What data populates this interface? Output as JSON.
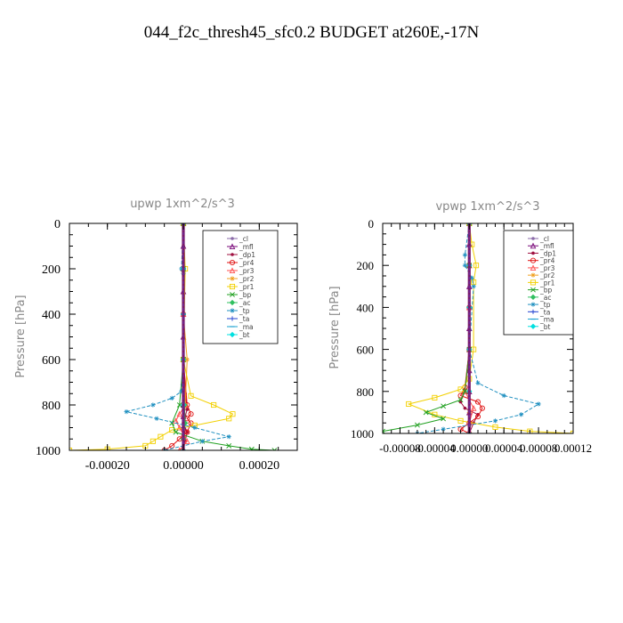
{
  "page_title": "044_f2c_thresh45_sfc0.2  BUDGET at260E,-17N",
  "chart_data": [
    {
      "type": "line",
      "title": "upwp   1xm^2/s^3",
      "ylabel": "Pressure [hPa]",
      "xlim": [
        -0.0003,
        0.0003
      ],
      "ylim": [
        1000,
        0
      ],
      "xticks": [
        -0.0002,
        0.0,
        0.0002
      ],
      "xtick_labels": [
        "-0.00020",
        "0.00000",
        "0.00020"
      ],
      "yticks": [
        0,
        200,
        400,
        600,
        800,
        1000
      ],
      "ytick_labels": [
        "0",
        "200",
        "400",
        "600",
        "800",
        "1000"
      ],
      "legend_location": "top-right",
      "series": [
        {
          "name": "_cl",
          "color": "#8a6aa8",
          "marker": "dot",
          "x": [
            0,
            0,
            0,
            0,
            0,
            0,
            0,
            0,
            0,
            0,
            0,
            0
          ],
          "y": [
            0,
            100,
            200,
            300,
            400,
            500,
            600,
            700,
            800,
            850,
            900,
            1000
          ]
        },
        {
          "name": "_mfl",
          "color": "#7a0a7a",
          "marker": "tri",
          "x": [
            0,
            0,
            0,
            0,
            0,
            0,
            0,
            0,
            0,
            0,
            0,
            0
          ],
          "y": [
            0,
            100,
            200,
            300,
            400,
            500,
            600,
            700,
            800,
            850,
            900,
            1000
          ]
        },
        {
          "name": "_dp1",
          "color": "#a01040",
          "marker": "dot",
          "x": [
            0,
            0,
            0,
            0,
            0,
            5e-06,
            1e-05,
            5e-06,
            0,
            1e-05,
            5e-06,
            0
          ],
          "y": [
            0,
            100,
            200,
            400,
            600,
            750,
            820,
            850,
            880,
            920,
            960,
            1000
          ]
        },
        {
          "name": "_pr4",
          "color": "#e01010",
          "marker": "circle",
          "x": [
            0,
            0,
            0,
            0,
            1e-05,
            2e-05,
            1e-05,
            2e-05,
            1e-05,
            -1e-05,
            -3e-05,
            -5e-05
          ],
          "y": [
            0,
            200,
            400,
            600,
            800,
            840,
            860,
            880,
            920,
            950,
            980,
            1000
          ]
        },
        {
          "name": "_pr3",
          "color": "#ff5050",
          "marker": "tri",
          "x": [
            0,
            0,
            0,
            0,
            5e-06,
            -1e-05,
            -2e-05,
            -1e-05,
            0,
            1e-05,
            -1e-05
          ],
          "y": [
            0,
            200,
            400,
            600,
            800,
            840,
            870,
            900,
            930,
            960,
            1000
          ]
        },
        {
          "name": "_pr2",
          "color": "#f0a020",
          "marker": "star",
          "x": [
            0,
            0,
            0,
            0,
            1e-05,
            5e-06,
            0,
            0,
            0
          ],
          "y": [
            0,
            200,
            220,
            400,
            600,
            800,
            900,
            950,
            1000
          ]
        },
        {
          "name": "_pr1",
          "color": "#f2d000",
          "marker": "square",
          "x": [
            0,
            5e-06,
            0,
            2e-05,
            8e-05,
            0.00013,
            0.00012,
            3e-05,
            -3e-05,
            -6e-05,
            -8e-05,
            -0.0001,
            -0.0002,
            -0.0003
          ],
          "y": [
            0,
            200,
            600,
            760,
            800,
            840,
            860,
            890,
            910,
            940,
            960,
            980,
            995,
            1000
          ]
        },
        {
          "name": "_bp",
          "color": "#20a020",
          "marker": "x",
          "x": [
            0,
            0,
            0,
            -1e-05,
            -3e-05,
            -2e-05,
            5e-05,
            0.00012,
            0.00018,
            0.00024
          ],
          "y": [
            0,
            200,
            600,
            800,
            880,
            920,
            960,
            980,
            995,
            1000
          ]
        },
        {
          "name": "_ac",
          "color": "#30c060",
          "marker": "diamond",
          "x": [
            0,
            0,
            0,
            3e-06,
            5e-06,
            0,
            0
          ],
          "y": [
            0,
            200,
            600,
            800,
            880,
            950,
            1000
          ]
        },
        {
          "name": "_tp",
          "color": "#2090c0",
          "marker": "star",
          "x": [
            0,
            -5e-06,
            0,
            0,
            -5e-06,
            -3e-05,
            -8e-05,
            -0.00015,
            -7e-05,
            3e-05,
            0.00012,
            5e-05,
            -5e-05
          ],
          "y": [
            0,
            200,
            220,
            600,
            740,
            770,
            800,
            830,
            860,
            900,
            940,
            960,
            1000
          ]
        },
        {
          "name": "_ta",
          "color": "#2040d0",
          "marker": "plus",
          "x": [
            0,
            0,
            0,
            0,
            0,
            0,
            0
          ],
          "y": [
            0,
            200,
            400,
            600,
            800,
            900,
            1000
          ]
        },
        {
          "name": "_ma",
          "color": "#1aa0d0",
          "marker": "dash",
          "x": [
            0,
            0,
            0,
            0,
            0,
            0
          ],
          "y": [
            0,
            200,
            400,
            600,
            800,
            1000
          ]
        },
        {
          "name": "_bt",
          "color": "#00e0e0",
          "marker": "diamond",
          "x": [
            0,
            0,
            0,
            0,
            0,
            0
          ],
          "y": [
            0,
            200,
            400,
            600,
            800,
            1000
          ]
        }
      ]
    },
    {
      "type": "line",
      "title": "vpwp   1xm^2/s^3",
      "ylabel": "Pressure [hPa]",
      "xlim": [
        -0.0001,
        0.00012
      ],
      "ylim": [
        1000,
        0
      ],
      "xticks": [
        -8e-05,
        -4e-05,
        0.0,
        4e-05,
        8e-05,
        0.00012
      ],
      "xtick_labels": [
        "-0.00008",
        "-0.00004",
        "0.00000",
        "0.00004",
        "0.00008",
        "0.00012"
      ],
      "yticks": [
        0,
        200,
        400,
        600,
        800,
        1000
      ],
      "ytick_labels": [
        "0",
        "200",
        "400",
        "600",
        "800",
        "1000"
      ],
      "legend_location": "top-right",
      "series": [
        {
          "name": "_cl",
          "color": "#8a6aa8",
          "marker": "dot",
          "x": [
            0,
            0,
            0,
            0,
            0,
            0,
            0,
            0,
            0,
            0,
            0
          ],
          "y": [
            0,
            100,
            200,
            300,
            400,
            500,
            600,
            700,
            800,
            900,
            1000
          ]
        },
        {
          "name": "_mfl",
          "color": "#7a0a7a",
          "marker": "tri",
          "x": [
            0,
            0,
            0,
            0,
            0,
            0,
            0,
            0,
            0,
            0,
            0
          ],
          "y": [
            0,
            100,
            200,
            300,
            400,
            500,
            600,
            700,
            800,
            900,
            1000
          ]
        },
        {
          "name": "_dp1",
          "color": "#a01040",
          "marker": "dot",
          "x": [
            0,
            0,
            0,
            0,
            -5e-06,
            -1e-05,
            -5e-06,
            1e-05,
            5e-06,
            0
          ],
          "y": [
            0,
            200,
            400,
            600,
            800,
            850,
            880,
            910,
            950,
            1000
          ]
        },
        {
          "name": "_pr4",
          "color": "#e01010",
          "marker": "circle",
          "x": [
            0,
            0,
            0,
            0,
            -5e-06,
            -1e-05,
            1e-05,
            1.5e-05,
            1e-05,
            0,
            -1e-05,
            0
          ],
          "y": [
            0,
            200,
            400,
            600,
            780,
            820,
            850,
            880,
            920,
            950,
            980,
            1000
          ]
        },
        {
          "name": "_pr3",
          "color": "#ff5050",
          "marker": "tri",
          "x": [
            0,
            0,
            0,
            0,
            -5e-06,
            5e-06,
            0,
            0
          ],
          "y": [
            0,
            200,
            400,
            600,
            800,
            880,
            950,
            1000
          ]
        },
        {
          "name": "_pr2",
          "color": "#f0a020",
          "marker": "star",
          "x": [
            0,
            0,
            0,
            0,
            0,
            0,
            0
          ],
          "y": [
            0,
            200,
            400,
            600,
            800,
            900,
            1000
          ]
        },
        {
          "name": "_pr1",
          "color": "#f2d000",
          "marker": "square",
          "x": [
            0,
            3e-06,
            8e-06,
            5e-06,
            5e-06,
            0,
            -1e-05,
            -4e-05,
            -7e-05,
            -4e-05,
            -1e-05,
            3e-05,
            7e-05,
            0.00012
          ],
          "y": [
            0,
            100,
            200,
            280,
            600,
            740,
            790,
            830,
            860,
            910,
            940,
            970,
            990,
            1000
          ]
        },
        {
          "name": "_bp",
          "color": "#20a020",
          "marker": "x",
          "x": [
            0,
            0,
            0,
            -5e-06,
            -1e-05,
            -3e-05,
            -5e-05,
            -3e-05,
            -6e-05,
            -0.0001
          ],
          "y": [
            0,
            200,
            600,
            800,
            840,
            870,
            900,
            930,
            960,
            990
          ]
        },
        {
          "name": "_ac",
          "color": "#30c060",
          "marker": "diamond",
          "x": [
            0,
            0,
            0,
            0,
            0,
            0
          ],
          "y": [
            0,
            200,
            400,
            600,
            800,
            1000
          ]
        },
        {
          "name": "_tp",
          "color": "#2090c0",
          "marker": "star",
          "x": [
            0,
            -5e-06,
            -5e-06,
            3e-06,
            5e-06,
            0,
            1e-05,
            4e-05,
            8e-05,
            6e-05,
            3e-05,
            0,
            -3e-05,
            -6e-05
          ],
          "y": [
            0,
            150,
            200,
            260,
            300,
            600,
            760,
            820,
            860,
            910,
            940,
            960,
            980,
            1000
          ]
        },
        {
          "name": "_ta",
          "color": "#2040d0",
          "marker": "plus",
          "x": [
            0,
            0,
            0,
            0,
            0,
            0
          ],
          "y": [
            0,
            200,
            400,
            600,
            800,
            1000
          ]
        },
        {
          "name": "_ma",
          "color": "#1aa0d0",
          "marker": "dash",
          "x": [
            0,
            0,
            0,
            0,
            0,
            0
          ],
          "y": [
            0,
            200,
            400,
            600,
            800,
            1000
          ]
        },
        {
          "name": "_bt",
          "color": "#00e0e0",
          "marker": "diamond",
          "x": [
            0,
            0,
            0,
            0,
            0,
            0
          ],
          "y": [
            0,
            200,
            400,
            600,
            800,
            1000
          ]
        }
      ]
    }
  ]
}
